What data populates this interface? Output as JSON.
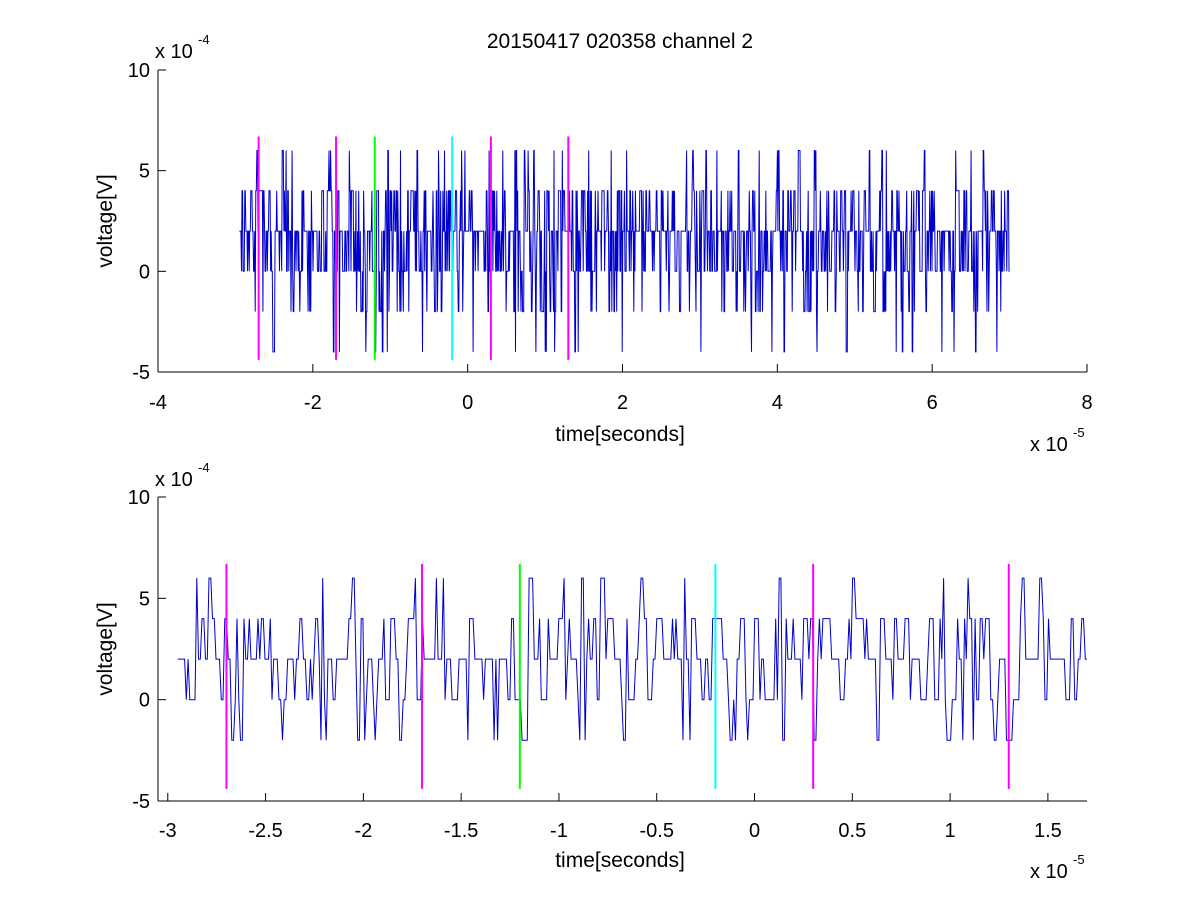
{
  "figure": {
    "title": "20150417 020358 channel 2",
    "background": "#ffffff",
    "signal_color": "#0000cc",
    "marker_colors": {
      "magenta": "#ff00ff",
      "green": "#00ff00",
      "cyan": "#00ffff"
    }
  },
  "chart_data": [
    {
      "type": "line",
      "title": "20150417 020358 channel 2",
      "xlabel": "time[seconds]",
      "ylabel": "voltage[V]",
      "x_multiplier": "x 10",
      "x_exponent": "-5",
      "y_multiplier": "x 10",
      "y_exponent": "-4",
      "xlim": [
        -4,
        8
      ],
      "ylim": [
        -5,
        10
      ],
      "xticks": [
        -4,
        -2,
        0,
        2,
        4,
        6,
        8
      ],
      "xtick_labels": [
        "-4",
        "-2",
        "0",
        "2",
        "4",
        "6",
        "8"
      ],
      "yticks": [
        -5,
        0,
        5,
        10
      ],
      "ytick_labels": [
        "-5",
        "0",
        "5",
        "10"
      ],
      "grid": false,
      "legend": "none",
      "signal": {
        "x_start": -2.95,
        "x_end": 7.0,
        "levels": [
          -4,
          -2,
          0,
          2,
          4,
          6
        ],
        "baseline": 2,
        "description_values_in_units_of_1e-4_V": "quantized noise between -4 and 6, mostly 0..4",
        "seed": 11
      },
      "markers": [
        {
          "x": -2.7,
          "color": "magenta",
          "ymin": -4.4,
          "ymax": 6.7
        },
        {
          "x": -1.7,
          "color": "magenta",
          "ymin": -4.4,
          "ymax": 6.7
        },
        {
          "x": -1.2,
          "color": "green",
          "ymin": -4.4,
          "ymax": 6.7
        },
        {
          "x": -0.2,
          "color": "cyan",
          "ymin": -4.4,
          "ymax": 6.7
        },
        {
          "x": 0.3,
          "color": "magenta",
          "ymin": -4.4,
          "ymax": 6.7
        },
        {
          "x": 1.3,
          "color": "magenta",
          "ymin": -4.4,
          "ymax": 6.7
        }
      ]
    },
    {
      "type": "line",
      "title": "",
      "xlabel": "time[seconds]",
      "ylabel": "voltage[V]",
      "x_multiplier": "x 10",
      "x_exponent": "-5",
      "y_multiplier": "x 10",
      "y_exponent": "-4",
      "xlim": [
        -3.05,
        1.7
      ],
      "ylim": [
        -5,
        10
      ],
      "xticks": [
        -3,
        -2.5,
        -2,
        -1.5,
        -1,
        -0.5,
        0,
        0.5,
        1,
        1.5
      ],
      "xtick_labels": [
        "-3",
        "-2.5",
        "-2",
        "-1.5",
        "-1",
        "-0.5",
        "0",
        "0.5",
        "1",
        "1.5"
      ],
      "yticks": [
        -5,
        0,
        5,
        10
      ],
      "ytick_labels": [
        "-5",
        "0",
        "5",
        "10"
      ],
      "grid": false,
      "legend": "none",
      "signal": {
        "x_start": -2.95,
        "x_end": 1.7,
        "levels": [
          -2,
          0,
          2,
          4,
          6
        ],
        "baseline": 2,
        "description_values_in_units_of_1e-4_V": "quantized noise between -2 and 6, mostly 0..4",
        "seed": 11
      },
      "markers": [
        {
          "x": -2.7,
          "color": "magenta",
          "ymin": -4.4,
          "ymax": 6.7
        },
        {
          "x": -1.7,
          "color": "magenta",
          "ymin": -4.4,
          "ymax": 6.7
        },
        {
          "x": -1.2,
          "color": "green",
          "ymin": -4.4,
          "ymax": 6.7
        },
        {
          "x": -0.2,
          "color": "cyan",
          "ymin": -4.4,
          "ymax": 6.7
        },
        {
          "x": 0.3,
          "color": "magenta",
          "ymin": -4.4,
          "ymax": 6.7
        },
        {
          "x": 1.3,
          "color": "magenta",
          "ymin": -4.4,
          "ymax": 6.7
        }
      ]
    }
  ]
}
